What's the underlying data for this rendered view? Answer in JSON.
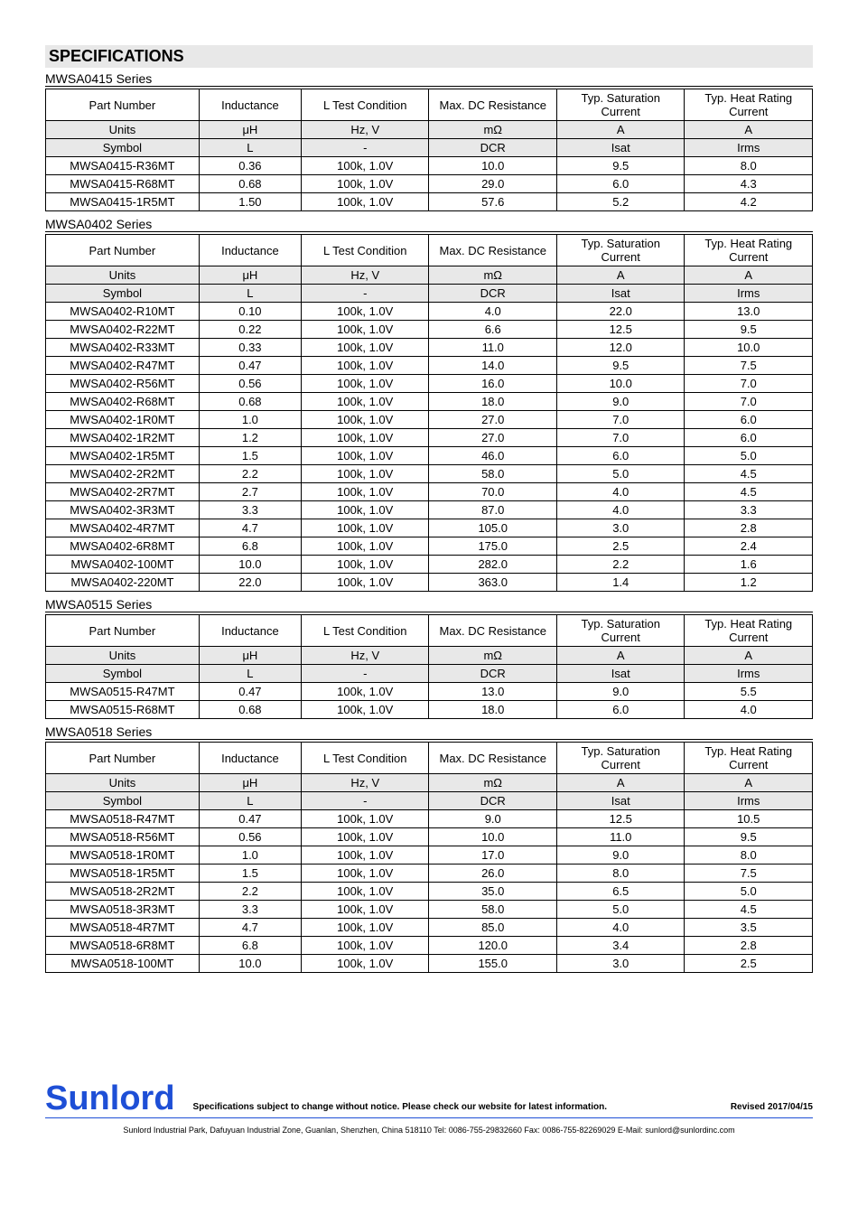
{
  "spec_title": "SPECIFICATIONS",
  "headers": {
    "part_number": "Part Number",
    "inductance": "Inductance",
    "condition": "L Test Condition",
    "dcr": "Max. DC Resistance",
    "isat": "Typ. Saturation Current",
    "irms": "Typ. Heat Rating Current",
    "units_label": "Units",
    "symbol_label": "Symbol",
    "units": {
      "ind": "μH",
      "cond": "Hz, V",
      "dcr": "mΩ",
      "isat": "A",
      "irms": "A"
    },
    "symbols": {
      "ind": "L",
      "cond": "-",
      "dcr": "DCR",
      "isat": "Isat",
      "irms": "Irms"
    }
  },
  "series": [
    {
      "name": "MWSA0415 Series",
      "rows": [
        [
          "MWSA0415-R36MT",
          "0.36",
          "100k, 1.0V",
          "10.0",
          "9.5",
          "8.0"
        ],
        [
          "MWSA0415-R68MT",
          "0.68",
          "100k, 1.0V",
          "29.0",
          "6.0",
          "4.3"
        ],
        [
          "MWSA0415-1R5MT",
          "1.50",
          "100k, 1.0V",
          "57.6",
          "5.2",
          "4.2"
        ]
      ]
    },
    {
      "name": "MWSA0402 Series",
      "rows": [
        [
          "MWSA0402-R10MT",
          "0.10",
          "100k, 1.0V",
          "4.0",
          "22.0",
          "13.0"
        ],
        [
          "MWSA0402-R22MT",
          "0.22",
          "100k, 1.0V",
          "6.6",
          "12.5",
          "9.5"
        ],
        [
          "MWSA0402-R33MT",
          "0.33",
          "100k, 1.0V",
          "11.0",
          "12.0",
          "10.0"
        ],
        [
          "MWSA0402-R47MT",
          "0.47",
          "100k, 1.0V",
          "14.0",
          "9.5",
          "7.5"
        ],
        [
          "MWSA0402-R56MT",
          "0.56",
          "100k, 1.0V",
          "16.0",
          "10.0",
          "7.0"
        ],
        [
          "MWSA0402-R68MT",
          "0.68",
          "100k, 1.0V",
          "18.0",
          "9.0",
          "7.0"
        ],
        [
          "MWSA0402-1R0MT",
          "1.0",
          "100k, 1.0V",
          "27.0",
          "7.0",
          "6.0"
        ],
        [
          "MWSA0402-1R2MT",
          "1.2",
          "100k, 1.0V",
          "27.0",
          "7.0",
          "6.0"
        ],
        [
          "MWSA0402-1R5MT",
          "1.5",
          "100k, 1.0V",
          "46.0",
          "6.0",
          "5.0"
        ],
        [
          "MWSA0402-2R2MT",
          "2.2",
          "100k, 1.0V",
          "58.0",
          "5.0",
          "4.5"
        ],
        [
          "MWSA0402-2R7MT",
          "2.7",
          "100k, 1.0V",
          "70.0",
          "4.0",
          "4.5"
        ],
        [
          "MWSA0402-3R3MT",
          "3.3",
          "100k, 1.0V",
          "87.0",
          "4.0",
          "3.3"
        ],
        [
          "MWSA0402-4R7MT",
          "4.7",
          "100k, 1.0V",
          "105.0",
          "3.0",
          "2.8"
        ],
        [
          "MWSA0402-6R8MT",
          "6.8",
          "100k, 1.0V",
          "175.0",
          "2.5",
          "2.4"
        ],
        [
          "MWSA0402-100MT",
          "10.0",
          "100k, 1.0V",
          "282.0",
          "2.2",
          "1.6"
        ],
        [
          "MWSA0402-220MT",
          "22.0",
          "100k, 1.0V",
          "363.0",
          "1.4",
          "1.2"
        ]
      ]
    },
    {
      "name": "MWSA0515 Series",
      "rows": [
        [
          "MWSA0515-R47MT",
          "0.47",
          "100k, 1.0V",
          "13.0",
          "9.0",
          "5.5"
        ],
        [
          "MWSA0515-R68MT",
          "0.68",
          "100k, 1.0V",
          "18.0",
          "6.0",
          "4.0"
        ]
      ]
    },
    {
      "name": "MWSA0518 Series",
      "rows": [
        [
          "MWSA0518-R47MT",
          "0.47",
          "100k, 1.0V",
          "9.0",
          "12.5",
          "10.5"
        ],
        [
          "MWSA0518-R56MT",
          "0.56",
          "100k, 1.0V",
          "10.0",
          "11.0",
          "9.5"
        ],
        [
          "MWSA0518-1R0MT",
          "1.0",
          "100k, 1.0V",
          "17.0",
          "9.0",
          "8.0"
        ],
        [
          "MWSA0518-1R5MT",
          "1.5",
          "100k, 1.0V",
          "26.0",
          "8.0",
          "7.5"
        ],
        [
          "MWSA0518-2R2MT",
          "2.2",
          "100k, 1.0V",
          "35.0",
          "6.5",
          "5.0"
        ],
        [
          "MWSA0518-3R3MT",
          "3.3",
          "100k, 1.0V",
          "58.0",
          "5.0",
          "4.5"
        ],
        [
          "MWSA0518-4R7MT",
          "4.7",
          "100k, 1.0V",
          "85.0",
          "4.0",
          "3.5"
        ],
        [
          "MWSA0518-6R8MT",
          "6.8",
          "100k, 1.0V",
          "120.0",
          "3.4",
          "2.8"
        ],
        [
          "MWSA0518-100MT",
          "10.0",
          "100k, 1.0V",
          "155.0",
          "3.0",
          "2.5"
        ]
      ]
    }
  ],
  "footer": {
    "brand": "Sunlord",
    "note": "Specifications subject to change without notice. Please check our website for latest information.",
    "revised": "Revised 2017/04/15",
    "address": "Sunlord Industrial Park, Dafuyuan Industrial Zone, Guanlan, Shenzhen, China 518110 Tel: 0086-755-29832660 Fax: 0086-755-82269029 E-Mail: sunlord@sunlordinc.com"
  }
}
